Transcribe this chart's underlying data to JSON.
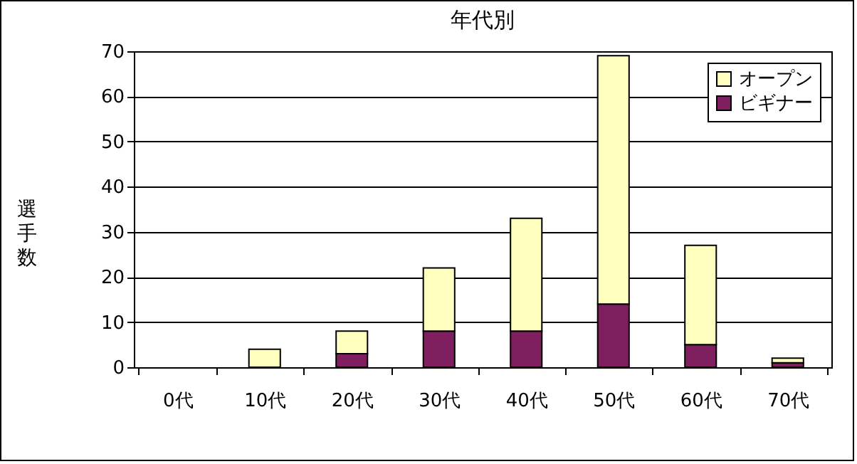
{
  "chart_data": {
    "type": "bar",
    "title": "年代別",
    "ylabel": "選手数",
    "stacked": true,
    "categories": [
      "0代",
      "10代",
      "20代",
      "30代",
      "40代",
      "50代",
      "60代",
      "70代"
    ],
    "series": [
      {
        "name": "ビギナー",
        "color": "#801f5f",
        "values": [
          0,
          0,
          3,
          8,
          8,
          14,
          5,
          1
        ]
      },
      {
        "name": "オープン",
        "color": "#ffffc0",
        "values": [
          0,
          4,
          5,
          14,
          25,
          55,
          22,
          1
        ]
      }
    ],
    "ylim": [
      0,
      70
    ],
    "yticks": [
      0,
      10,
      20,
      30,
      40,
      50,
      60,
      70
    ],
    "grid": "y",
    "legend": "top right"
  }
}
